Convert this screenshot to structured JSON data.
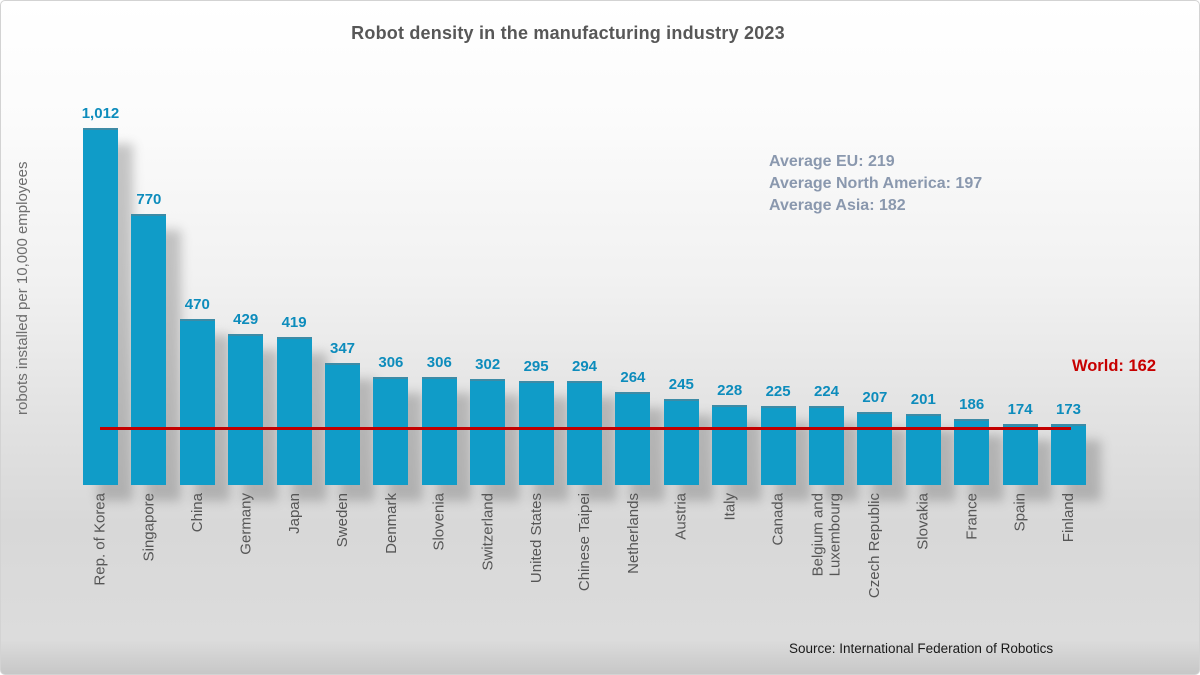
{
  "title": "Robot density in the manufacturing industry 2023",
  "y_axis_label": "robots installed per 10,000 employees",
  "annotations": {
    "averages": [
      "Average EU: 219",
      "Average North America: 197",
      "Average Asia: 182"
    ],
    "world_label": "World: 162"
  },
  "source": "Source: International Federation of Robotics",
  "colors": {
    "bar": "#109CC8",
    "value_label": "#0D8CBC",
    "title": "#575757",
    "average": "#8A98AE",
    "world": "#C70000",
    "line": "#C30000",
    "axis_label": "#6E6E6E",
    "country_label": "#565656",
    "source": "#1A1A1A"
  },
  "chart_data": {
    "type": "bar",
    "title": "Robot density in the manufacturing industry 2023",
    "ylabel": "robots installed per 10,000 employees",
    "xlabel": "",
    "ylim": [
      0,
      1100
    ],
    "grid": false,
    "legend": "none",
    "categories": [
      "Rep. of Korea",
      "Singapore",
      "China",
      "Germany",
      "Japan",
      "Sweden",
      "Denmark",
      "Slovenia",
      "Switzerland",
      "United States",
      "Chinese Taipei",
      "Netherlands",
      "Austria",
      "Italy",
      "Canada",
      "Belgium and Luxembourg",
      "Czech Republic",
      "Slovakia",
      "France",
      "Spain",
      "Finland"
    ],
    "values": [
      1012,
      770,
      470,
      429,
      419,
      347,
      306,
      306,
      302,
      295,
      294,
      264,
      245,
      228,
      225,
      224,
      207,
      201,
      186,
      174,
      173
    ],
    "value_labels": [
      "1,012",
      "770",
      "470",
      "429",
      "419",
      "347",
      "306",
      "306",
      "302",
      "295",
      "294",
      "264",
      "245",
      "228",
      "225",
      "224",
      "207",
      "201",
      "186",
      "174",
      "173"
    ],
    "reference_line": {
      "label": "World: 162",
      "value": 162
    },
    "annotations_text": [
      "Average EU: 219",
      "Average North America: 197",
      "Average Asia: 182"
    ]
  }
}
